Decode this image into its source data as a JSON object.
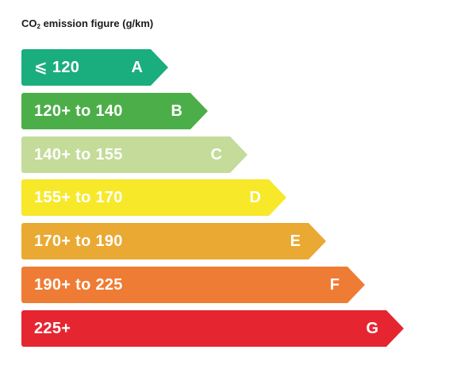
{
  "title": {
    "prefix": "CO",
    "subscript": "2",
    "suffix": " emission figure (g/km)"
  },
  "bands": [
    {
      "range": "⩽ 120",
      "letter": "A",
      "color": "#1aad7e"
    },
    {
      "range": "120+ to 140",
      "letter": "B",
      "color": "#4cae48"
    },
    {
      "range": "140+ to 155",
      "letter": "C",
      "color": "#c4db99"
    },
    {
      "range": "155+ to 170",
      "letter": "D",
      "color": "#f7e82a"
    },
    {
      "range": "170+ to 190",
      "letter": "E",
      "color": "#e9a932"
    },
    {
      "range": "190+  to 225",
      "letter": "F",
      "color": "#ef7c34"
    },
    {
      "range": "225+",
      "letter": "G",
      "color": "#e52631"
    }
  ]
}
